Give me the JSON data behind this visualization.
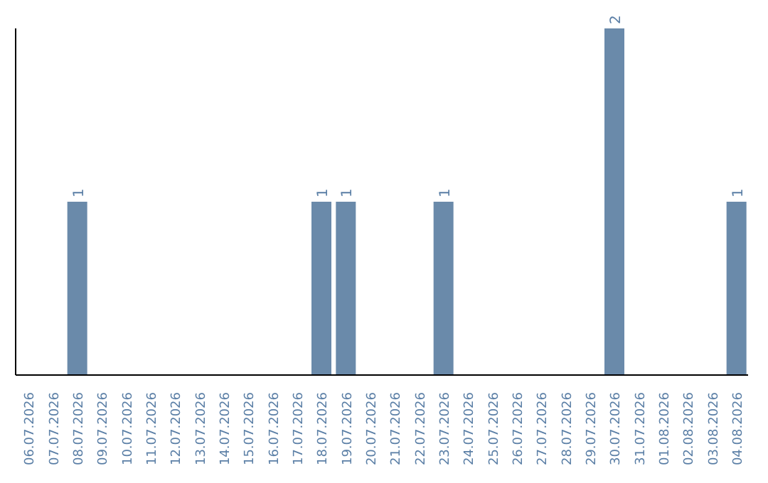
{
  "chart_data": {
    "type": "bar",
    "categories": [
      "06.07.2026",
      "07.07.2026",
      "08.07.2026",
      "09.07.2026",
      "10.07.2026",
      "11.07.2026",
      "12.07.2026",
      "13.07.2026",
      "14.07.2026",
      "15.07.2026",
      "16.07.2026",
      "17.07.2026",
      "18.07.2026",
      "19.07.2026",
      "20.07.2026",
      "21.07.2026",
      "22.07.2026",
      "23.07.2026",
      "24.07.2026",
      "25.07.2026",
      "26.07.2026",
      "27.07.2026",
      "28.07.2026",
      "29.07.2026",
      "30.07.2026",
      "31.07.2026",
      "01.08.2026",
      "02.08.2026",
      "03.08.2026",
      "04.08.2026"
    ],
    "values": [
      0,
      0,
      1,
      0,
      0,
      0,
      0,
      0,
      0,
      0,
      0,
      0,
      1,
      1,
      0,
      0,
      0,
      1,
      0,
      0,
      0,
      0,
      0,
      0,
      2,
      0,
      0,
      0,
      0,
      1
    ],
    "value_labels": [
      null,
      null,
      "1",
      null,
      null,
      null,
      null,
      null,
      null,
      null,
      null,
      null,
      "1",
      "1",
      null,
      null,
      null,
      "1",
      null,
      null,
      null,
      null,
      null,
      null,
      "2",
      null,
      null,
      null,
      null,
      "1"
    ],
    "color": "#6a8aaa",
    "grid": false,
    "legend": false
  }
}
